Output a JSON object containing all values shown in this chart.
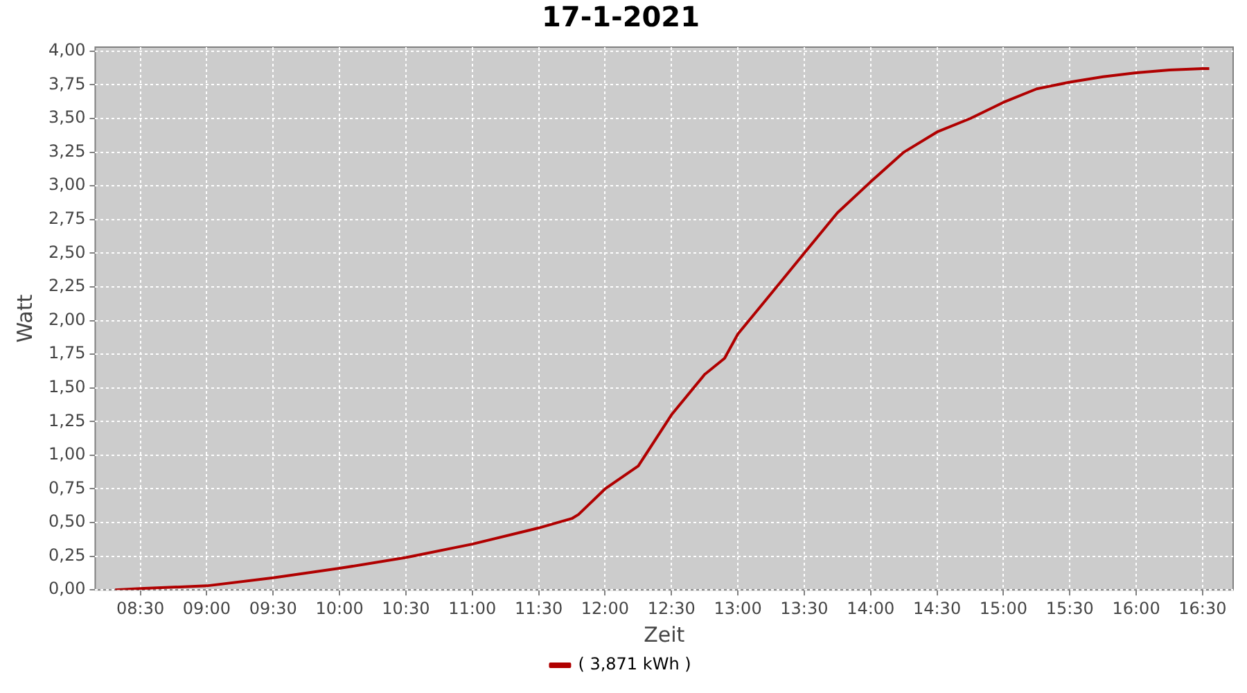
{
  "chart_data": {
    "type": "line",
    "title": "17-1-2021",
    "xlabel": "Zeit",
    "ylabel": "Watt",
    "series": [
      {
        "name": "( 3,871 kWh )",
        "color": "#b00000",
        "x": [
          8.31,
          8.5,
          9.0,
          9.5,
          10.0,
          10.5,
          11.0,
          11.5,
          11.75,
          11.8,
          12.0,
          12.25,
          12.5,
          12.75,
          12.9,
          13.0,
          13.25,
          13.5,
          13.75,
          14.0,
          14.25,
          14.5,
          14.75,
          15.0,
          15.25,
          15.5,
          15.75,
          16.0,
          16.25,
          16.5,
          16.55
        ],
        "values": [
          0,
          0.01,
          0.03,
          0.09,
          0.16,
          0.24,
          0.34,
          0.46,
          0.53,
          0.56,
          0.75,
          0.92,
          1.3,
          1.6,
          1.72,
          1.9,
          2.2,
          2.5,
          2.8,
          3.03,
          3.25,
          3.4,
          3.5,
          3.62,
          3.72,
          3.77,
          3.81,
          3.84,
          3.86,
          3.87,
          3.87
        ]
      }
    ],
    "xlim": [
      8.16,
      16.73
    ],
    "xticks": [
      {
        "value": 8.5,
        "label": "08:30"
      },
      {
        "value": 9,
        "label": "09:00"
      },
      {
        "value": 9.5,
        "label": "09:30"
      },
      {
        "value": 10,
        "label": "10:00"
      },
      {
        "value": 10.5,
        "label": "10:30"
      },
      {
        "value": 11,
        "label": "11:00"
      },
      {
        "value": 11.5,
        "label": "11:30"
      },
      {
        "value": 12,
        "label": "12:00"
      },
      {
        "value": 12.5,
        "label": "12:30"
      },
      {
        "value": 13,
        "label": "13:00"
      },
      {
        "value": 13.5,
        "label": "13:30"
      },
      {
        "value": 14,
        "label": "14:00"
      },
      {
        "value": 14.5,
        "label": "14:30"
      },
      {
        "value": 15,
        "label": "15:00"
      },
      {
        "value": 15.5,
        "label": "15:30"
      },
      {
        "value": 16,
        "label": "16:00"
      },
      {
        "value": 16.5,
        "label": "16:30"
      }
    ],
    "ylim": [
      0,
      4.03
    ],
    "yticks": [
      {
        "value": 0,
        "label": "0,00"
      },
      {
        "value": 0.25,
        "label": "0,25"
      },
      {
        "value": 0.5,
        "label": "0,50"
      },
      {
        "value": 0.75,
        "label": "0,75"
      },
      {
        "value": 1,
        "label": "1,00"
      },
      {
        "value": 1.25,
        "label": "1,25"
      },
      {
        "value": 1.5,
        "label": "1,50"
      },
      {
        "value": 1.75,
        "label": "1,75"
      },
      {
        "value": 2,
        "label": "2,00"
      },
      {
        "value": 2.25,
        "label": "2,25"
      },
      {
        "value": 2.5,
        "label": "2,50"
      },
      {
        "value": 2.75,
        "label": "2,75"
      },
      {
        "value": 3,
        "label": "3,00"
      },
      {
        "value": 3.25,
        "label": "3,25"
      },
      {
        "value": 3.5,
        "label": "3,50"
      },
      {
        "value": 3.75,
        "label": "3,75"
      },
      {
        "value": 4,
        "label": "4,00"
      }
    ],
    "grid": true,
    "legend": "bottom",
    "marker": "none",
    "line_style": "solid"
  }
}
